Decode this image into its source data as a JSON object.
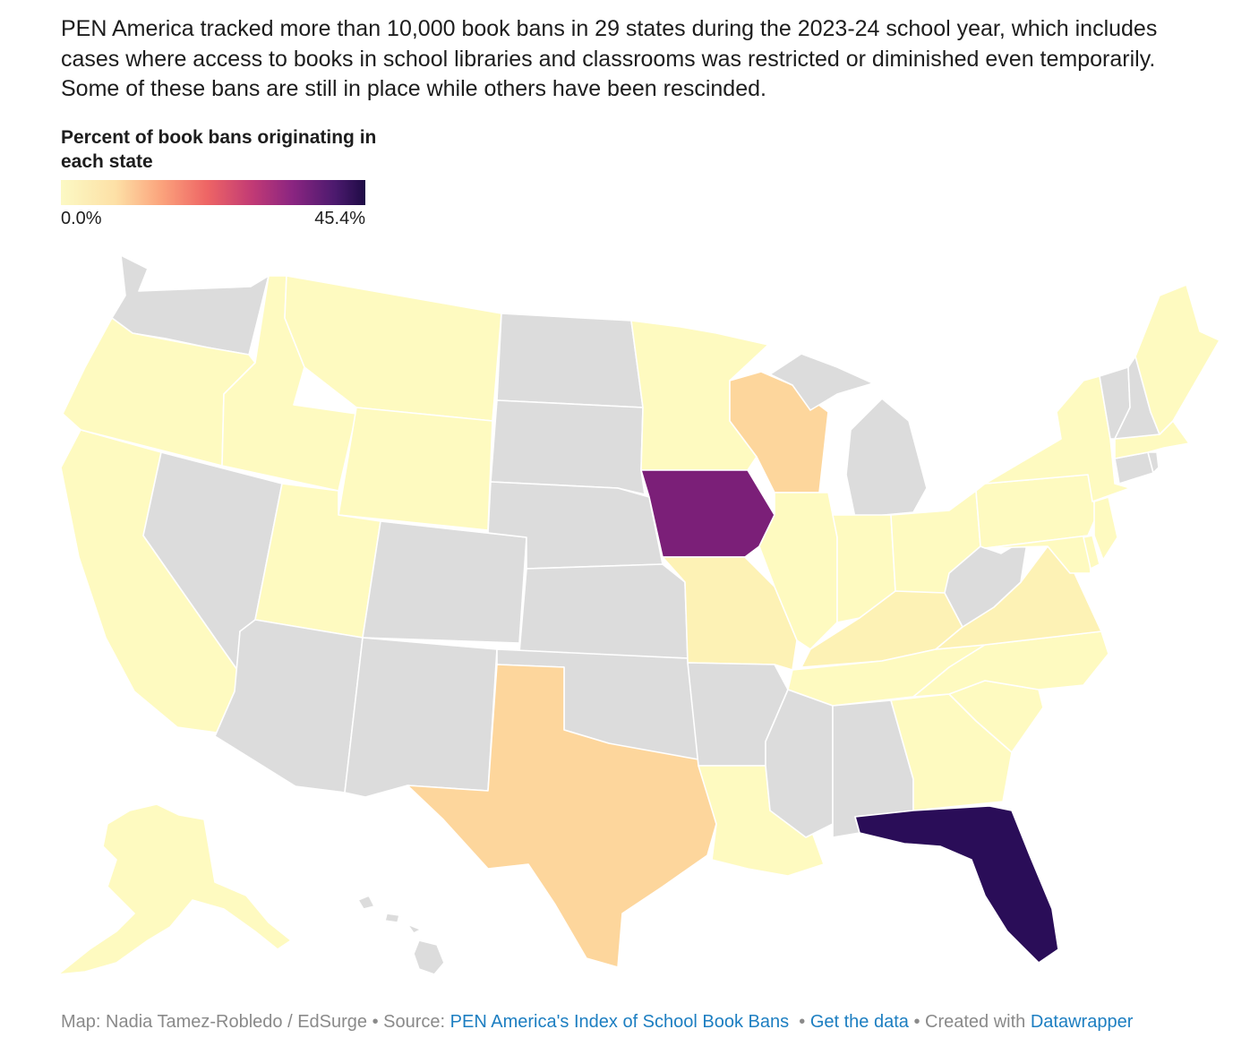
{
  "header": {
    "description": "PEN America tracked more than 10,000 book bans in 29 states during the 2023-24 school year, which includes cases where access to books in school libraries and classrooms was restricted or diminished even temporarily. Some of these bans are still in place while others have been rescinded."
  },
  "legend": {
    "title": "Percent of book bans originating in each state",
    "min_label": "0.0%",
    "max_label": "45.4%",
    "gradient_colors": [
      "#fcf9c4",
      "#fde0a6",
      "#fba37c",
      "#ee6565",
      "#c13a75",
      "#8b2581",
      "#4c1a6e",
      "#1e0b45"
    ]
  },
  "colors": {
    "no_data": "#dcdcdc",
    "low": "#fefac0",
    "low_mid": "#fdf2b5",
    "mid": "#fdd69c",
    "iowa": "#7b1f78",
    "florida": "#2a0d58",
    "border": "#ffffff"
  },
  "footer": {
    "credit": "Map: Nadia Tamez-Robledo / EdSurge",
    "source_prefix": "• Source:",
    "source_link": "PEN America's Index of School Book Bans",
    "data_link": "Get the data",
    "created_prefix": "• Created with",
    "created_link": "Datawrapper"
  }
}
